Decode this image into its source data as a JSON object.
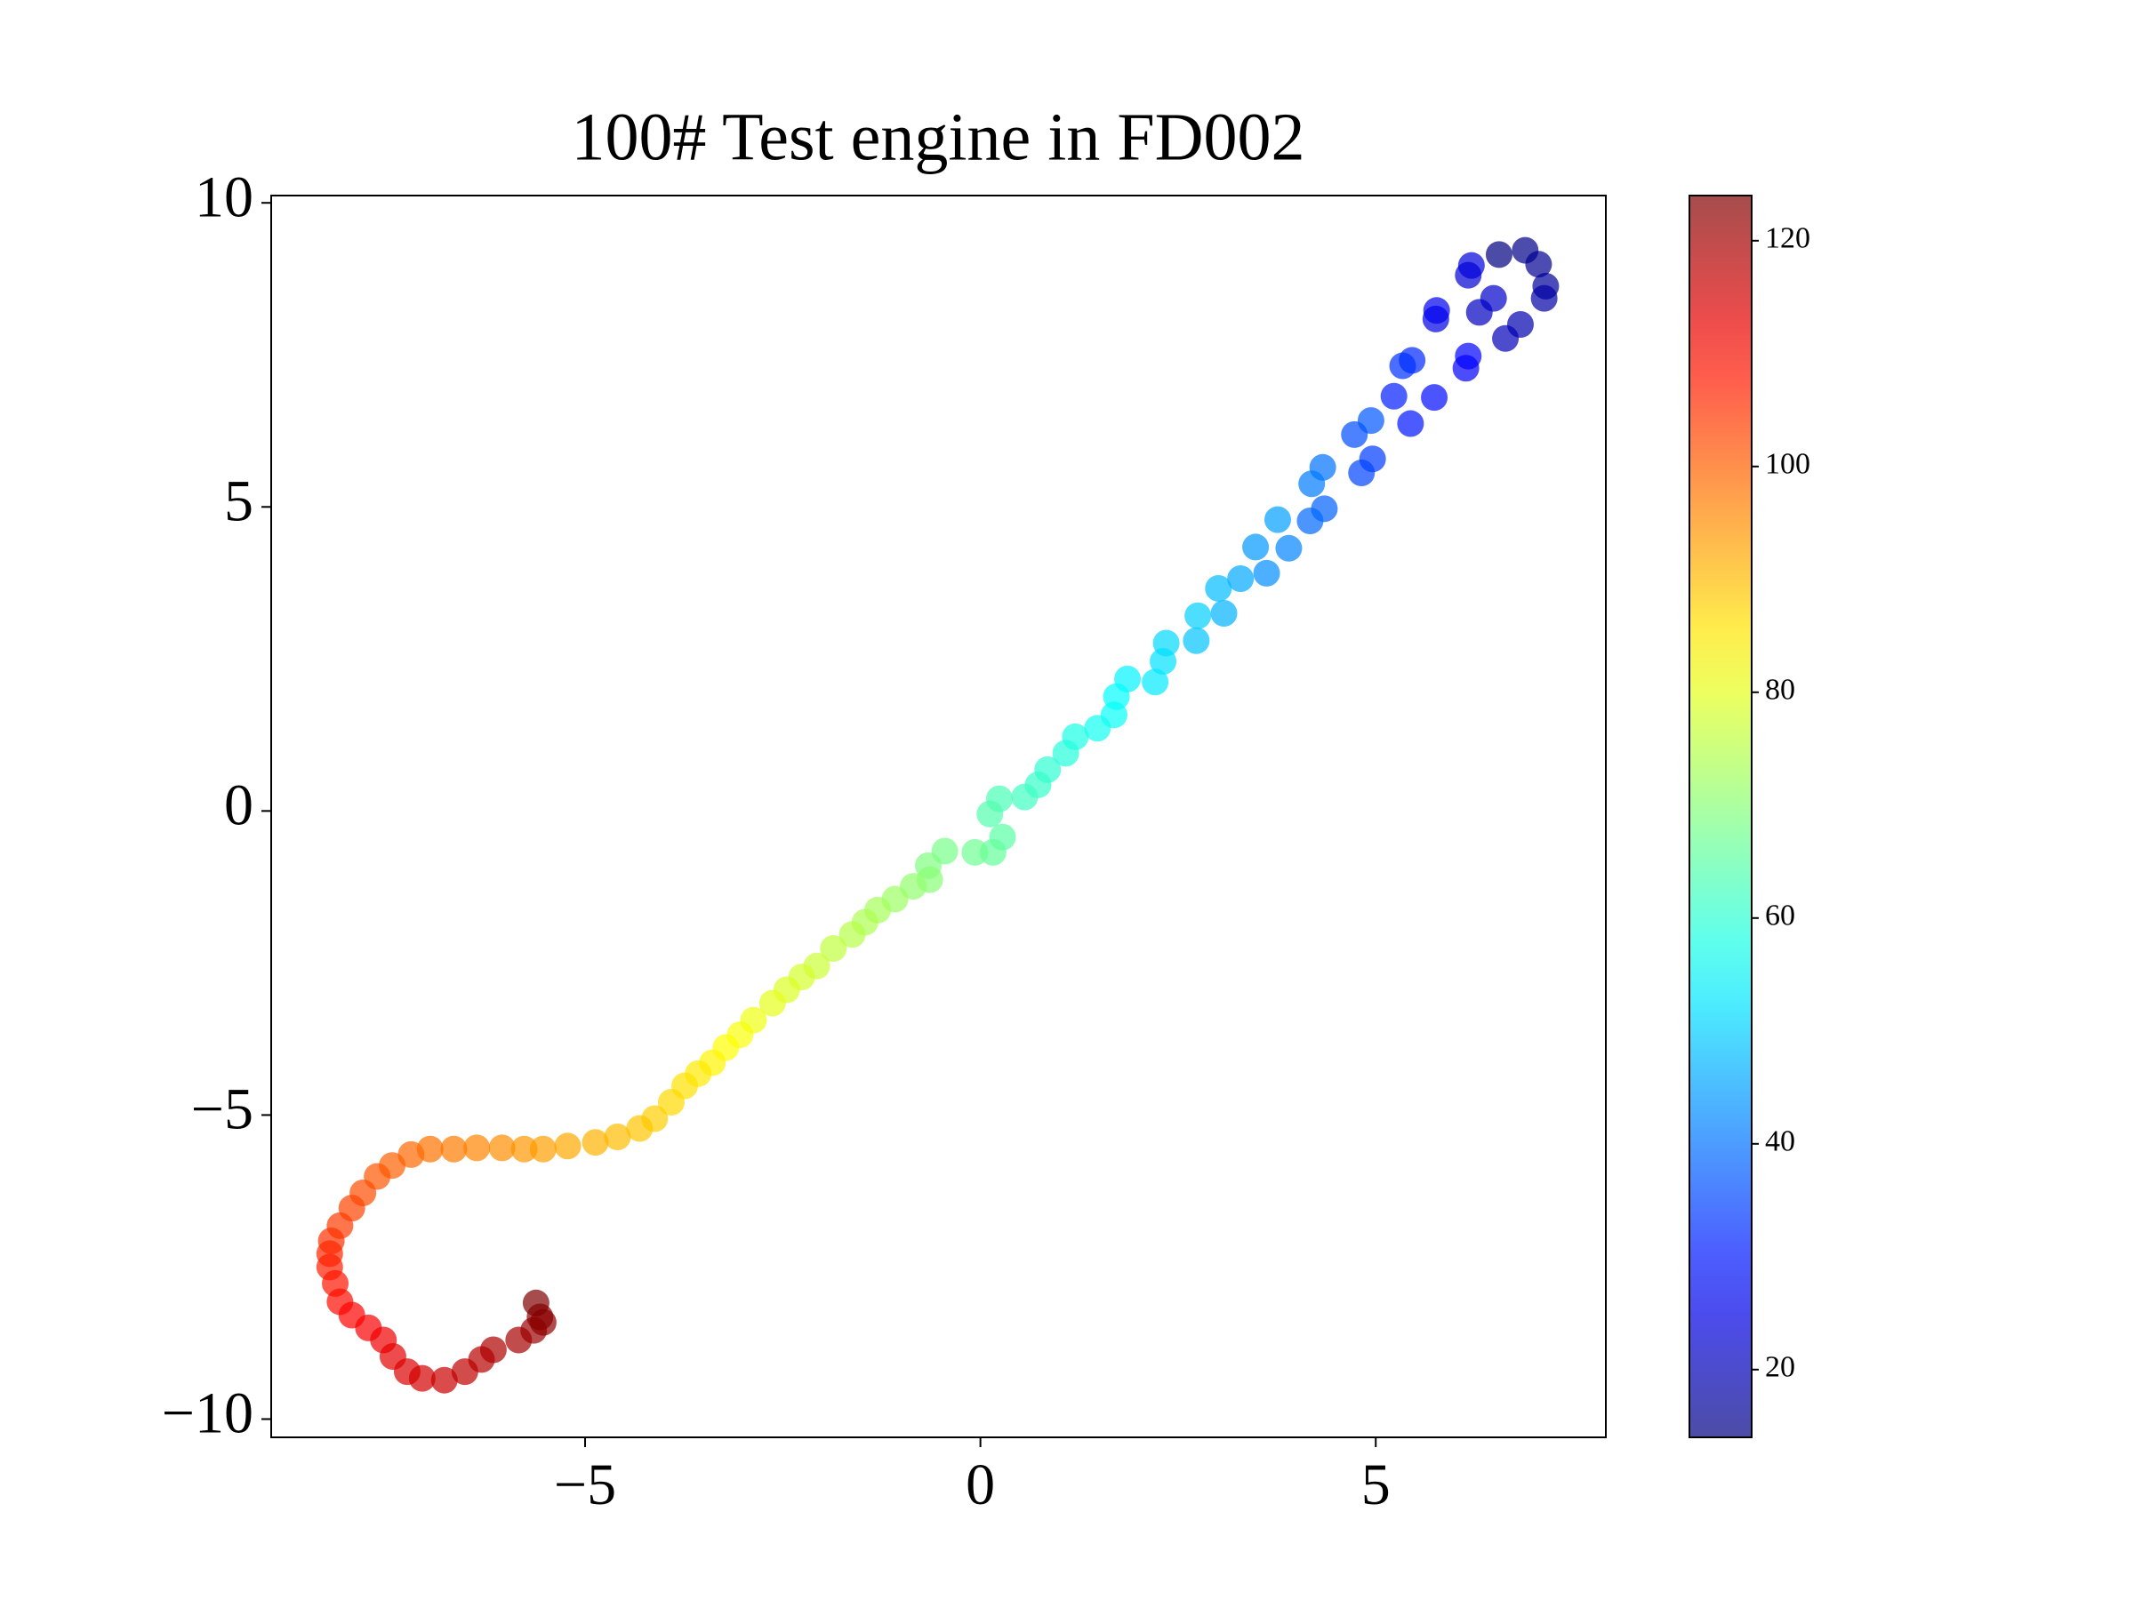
{
  "chart_data": {
    "type": "scatter",
    "title": "100# Test engine in FD002",
    "x": [
      6.56,
      6.89,
      7.06,
      7.15,
      7.13,
      6.83,
      6.64,
      6.31,
      6.49,
      6.17,
      6.21,
      5.76,
      5.77,
      6.14,
      6.17,
      5.74,
      5.44,
      5.23,
      5.46,
      5.34,
      4.96,
      4.82,
      4.73,
      4.94,
      4.35,
      4.17,
      4.33,
      4.19,
      3.9,
      3.62,
      3.48,
      3.76,
      3.29,
      3.08,
      3.01,
      2.73,
      2.75,
      2.35,
      2.31,
      2.21,
      1.86,
      1.72,
      1.69,
      1.48,
      1.2,
      1.08,
      0.85,
      0.73,
      0.56,
      0.24,
      0.12,
      0.28,
      0.16,
      -0.07,
      -0.45,
      -0.66,
      -0.64,
      -0.85,
      -1.08,
      -1.3,
      -1.46,
      -1.62,
      -1.86,
      -2.07,
      -2.26,
      -2.45,
      -2.63,
      -2.87,
      -3.04,
      -3.22,
      -3.39,
      -3.57,
      -3.74,
      -3.91,
      -4.12,
      -4.31,
      -4.59,
      -4.87,
      -5.22,
      -5.53,
      -5.77,
      -6.05,
      -6.37,
      -6.66,
      -6.96,
      -7.2,
      -7.44,
      -7.63,
      -7.81,
      -7.95,
      -8.1,
      -8.21,
      -8.23,
      -8.23,
      -8.16,
      -8.1,
      -7.95,
      -7.74,
      -7.55,
      -7.43,
      -7.25,
      -7.06,
      -6.78,
      -6.52,
      -6.31,
      -6.16,
      -5.84,
      -5.65,
      -5.53,
      -5.57,
      -5.62
    ],
    "y": [
      9.15,
      9.22,
      8.99,
      8.63,
      8.43,
      8.0,
      7.77,
      8.2,
      8.43,
      8.81,
      8.97,
      8.09,
      8.23,
      7.28,
      7.48,
      6.8,
      6.37,
      6.82,
      7.41,
      7.32,
      5.79,
      5.56,
      6.19,
      6.42,
      4.97,
      4.77,
      5.65,
      5.38,
      4.32,
      3.91,
      4.34,
      4.79,
      3.82,
      3.25,
      3.66,
      2.8,
      3.21,
      2.76,
      2.46,
      2.12,
      2.17,
      1.88,
      1.58,
      1.36,
      1.22,
      0.95,
      0.68,
      0.43,
      0.23,
      0.2,
      -0.05,
      -0.43,
      -0.68,
      -0.68,
      -0.66,
      -0.9,
      -1.13,
      -1.24,
      -1.45,
      -1.63,
      -1.83,
      -2.03,
      -2.26,
      -2.55,
      -2.73,
      -2.94,
      -3.16,
      -3.44,
      -3.68,
      -3.89,
      -4.14,
      -4.32,
      -4.52,
      -4.79,
      -5.06,
      -5.22,
      -5.36,
      -5.45,
      -5.51,
      -5.56,
      -5.56,
      -5.54,
      -5.54,
      -5.56,
      -5.56,
      -5.65,
      -5.83,
      -6.01,
      -6.28,
      -6.53,
      -6.82,
      -7.07,
      -7.28,
      -7.5,
      -7.77,
      -8.07,
      -8.29,
      -8.5,
      -8.7,
      -8.97,
      -9.22,
      -9.33,
      -9.36,
      -9.22,
      -9.02,
      -8.86,
      -8.7,
      -8.54,
      -8.41,
      -8.32,
      -8.09
    ],
    "c": [
      14,
      15,
      16,
      17,
      18,
      19,
      20,
      21,
      22,
      23,
      24,
      25,
      26,
      27,
      28,
      29,
      30,
      31,
      32,
      33,
      34,
      35,
      36,
      37,
      38,
      39,
      40,
      41,
      42,
      43,
      44,
      45,
      46,
      47,
      48,
      49,
      50,
      51,
      52,
      53,
      54,
      55,
      56,
      57,
      58,
      59,
      60,
      61,
      62,
      63,
      64,
      65,
      66,
      67,
      68,
      69,
      70,
      71,
      72,
      73,
      74,
      75,
      76,
      77,
      78,
      79,
      80,
      81,
      82,
      83,
      84,
      85,
      86,
      87,
      88,
      89,
      90,
      91,
      92,
      93,
      94,
      95,
      96,
      97,
      98,
      99,
      100,
      101,
      102,
      103,
      104,
      105,
      106,
      107,
      108,
      109,
      110,
      111,
      112,
      113,
      114,
      115,
      116,
      117,
      118,
      119,
      120,
      121,
      122,
      123,
      124
    ],
    "colormap": "jet",
    "opacity": 0.7,
    "xlim": [
      -8.97,
      7.91
    ],
    "ylim": [
      -10.3,
      10.12
    ],
    "xticks": [
      {
        "value": -5,
        "label": "−5"
      },
      0,
      5
    ],
    "yticks": [
      {
        "value": -10,
        "label": "−10"
      },
      {
        "value": -5,
        "label": "−5"
      },
      0,
      5,
      10
    ],
    "clim": [
      14,
      124
    ],
    "cticks": [
      20,
      40,
      60,
      80,
      100,
      120
    ]
  }
}
